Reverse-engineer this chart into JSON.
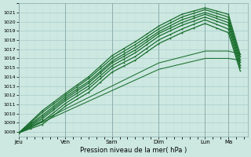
{
  "bg_color": "#cce8e0",
  "grid_major_color": "#aacccc",
  "grid_minor_color": "#bbdddd",
  "line_color": "#1a6e2e",
  "xlabel": "Pression niveau de la mer( hPa )",
  "ylim": [
    1007.5,
    1022.0
  ],
  "yticks": [
    1008,
    1009,
    1010,
    1011,
    1012,
    1013,
    1014,
    1015,
    1016,
    1017,
    1018,
    1019,
    1020,
    1021
  ],
  "day_labels": [
    "Jeu",
    "Ven",
    "Sam",
    "Dim",
    "Lun",
    "Ma"
  ],
  "day_positions": [
    0,
    24,
    48,
    72,
    96,
    108
  ],
  "xlim": [
    0,
    118
  ],
  "ensemble_lines": [
    {
      "pts": [
        [
          0,
          1007.9
        ],
        [
          12,
          1010.3
        ],
        [
          24,
          1012.2
        ],
        [
          36,
          1014.0
        ],
        [
          48,
          1016.3
        ],
        [
          60,
          1017.8
        ],
        [
          72,
          1019.5
        ],
        [
          84,
          1020.8
        ],
        [
          96,
          1021.5
        ],
        [
          108,
          1020.8
        ],
        [
          114,
          1016.5
        ]
      ],
      "lw": 0.9
    },
    {
      "pts": [
        [
          0,
          1007.9
        ],
        [
          12,
          1010.1
        ],
        [
          24,
          1012.0
        ],
        [
          36,
          1013.8
        ],
        [
          48,
          1016.0
        ],
        [
          60,
          1017.5
        ],
        [
          72,
          1019.2
        ],
        [
          84,
          1020.5
        ],
        [
          96,
          1021.3
        ],
        [
          108,
          1020.5
        ],
        [
          114,
          1016.2
        ]
      ],
      "lw": 0.9
    },
    {
      "pts": [
        [
          0,
          1007.9
        ],
        [
          12,
          1009.8
        ],
        [
          24,
          1011.8
        ],
        [
          36,
          1013.5
        ],
        [
          48,
          1015.7
        ],
        [
          60,
          1017.2
        ],
        [
          72,
          1018.9
        ],
        [
          84,
          1020.2
        ],
        [
          96,
          1021.0
        ],
        [
          108,
          1020.2
        ],
        [
          114,
          1015.9
        ]
      ],
      "lw": 0.9
    },
    {
      "pts": [
        [
          0,
          1007.9
        ],
        [
          12,
          1009.6
        ],
        [
          24,
          1011.6
        ],
        [
          36,
          1013.3
        ],
        [
          48,
          1015.5
        ],
        [
          60,
          1016.9
        ],
        [
          72,
          1018.7
        ],
        [
          84,
          1019.9
        ],
        [
          96,
          1020.8
        ],
        [
          108,
          1019.9
        ],
        [
          114,
          1015.6
        ]
      ],
      "lw": 0.9
    },
    {
      "pts": [
        [
          0,
          1007.9
        ],
        [
          12,
          1009.4
        ],
        [
          24,
          1011.4
        ],
        [
          36,
          1013.0
        ],
        [
          48,
          1015.2
        ],
        [
          60,
          1016.6
        ],
        [
          72,
          1018.4
        ],
        [
          84,
          1019.6
        ],
        [
          96,
          1020.5
        ],
        [
          108,
          1019.6
        ],
        [
          114,
          1015.3
        ]
      ],
      "lw": 0.9
    },
    {
      "pts": [
        [
          0,
          1007.9
        ],
        [
          12,
          1009.1
        ],
        [
          24,
          1011.1
        ],
        [
          36,
          1012.7
        ],
        [
          48,
          1014.9
        ],
        [
          60,
          1016.2
        ],
        [
          72,
          1018.0
        ],
        [
          84,
          1019.2
        ],
        [
          96,
          1020.2
        ],
        [
          108,
          1019.2
        ],
        [
          114,
          1015.0
        ]
      ],
      "lw": 0.9
    },
    {
      "pts": [
        [
          0,
          1007.9
        ],
        [
          12,
          1008.8
        ],
        [
          24,
          1010.8
        ],
        [
          36,
          1012.3
        ],
        [
          48,
          1014.5
        ],
        [
          60,
          1015.8
        ],
        [
          72,
          1017.6
        ],
        [
          84,
          1018.8
        ],
        [
          96,
          1019.8
        ],
        [
          108,
          1018.8
        ],
        [
          114,
          1014.7
        ]
      ],
      "lw": 0.9
    },
    {
      "pts": [
        [
          0,
          1007.9
        ],
        [
          24,
          1010.5
        ],
        [
          48,
          1013.0
        ],
        [
          72,
          1015.5
        ],
        [
          96,
          1016.8
        ],
        [
          108,
          1016.8
        ],
        [
          114,
          1016.5
        ]
      ],
      "lw": 0.75
    },
    {
      "pts": [
        [
          0,
          1007.9
        ],
        [
          24,
          1010.2
        ],
        [
          48,
          1012.5
        ],
        [
          72,
          1014.8
        ],
        [
          96,
          1016.0
        ],
        [
          108,
          1016.0
        ],
        [
          114,
          1015.8
        ]
      ],
      "lw": 0.75
    }
  ],
  "marker_every": 6,
  "marker_lines": [
    0,
    1,
    2,
    3,
    4,
    5,
    6
  ]
}
